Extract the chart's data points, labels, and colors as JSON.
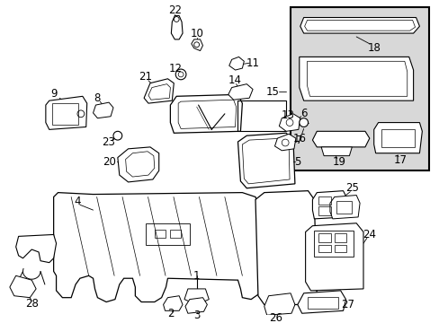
{
  "bg_color": "#ffffff",
  "dpi": 100,
  "fig_width": 4.89,
  "fig_height": 3.6,
  "inset_bg": "#d8d8d8",
  "line_color": "#000000",
  "label_fontsize": 8.5
}
